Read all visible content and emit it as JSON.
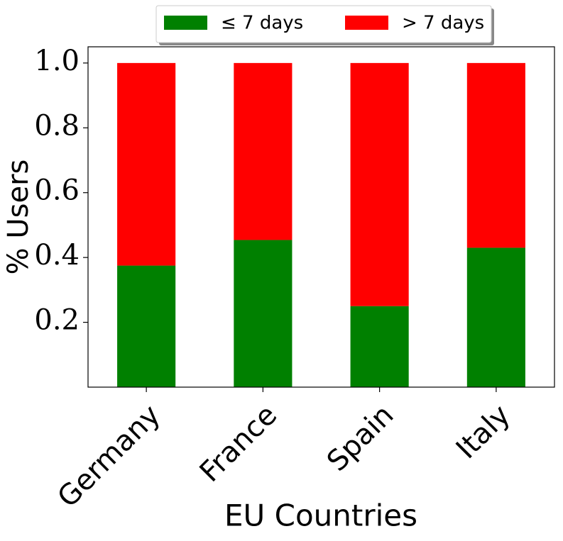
{
  "chart_data": {
    "type": "stacked_bar",
    "x_label": "EU Countries",
    "y_label": "% Users",
    "categories": [
      "Germany",
      "France",
      "Spain",
      "Italy"
    ],
    "series": [
      {
        "name": "≤ 7 days",
        "color": "#008000",
        "values": [
          0.375,
          0.454,
          0.25,
          0.43
        ]
      },
      {
        "name": "> 7 days",
        "color": "#ff0000",
        "values": [
          0.625,
          0.546,
          0.75,
          0.57
        ]
      }
    ],
    "ylim": [
      0,
      1.05
    ],
    "yticks": [
      0.2,
      0.4,
      0.6,
      0.8,
      {
        "value": 1,
        "label": "1.0"
      }
    ]
  }
}
